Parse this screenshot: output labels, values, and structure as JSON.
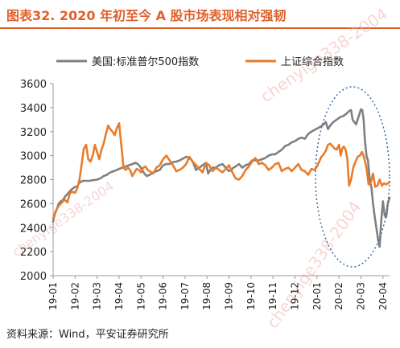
{
  "figure": {
    "title": "图表32.  2020 年初至今 A 股市场表现相对强韧",
    "source": "资料来源：Wind，平安证券研究所",
    "watermark": "chenyige338-2004"
  },
  "chart_data": {
    "type": "line",
    "ylim": [
      2000,
      3600
    ],
    "yticks": [
      2000,
      2200,
      2400,
      2600,
      2800,
      3000,
      3200,
      3400,
      3600
    ],
    "xticks": [
      "19-01",
      "19-02",
      "19-03",
      "19-04",
      "19-05",
      "19-06",
      "19-07",
      "19-08",
      "19-09",
      "19-10",
      "19-11",
      "19-12",
      "20-01",
      "20-02",
      "20-03",
      "20-04"
    ],
    "grid": false,
    "legend_position": "top",
    "annotation": "dotted-ellipse around 20-02 to 20-04",
    "series": [
      {
        "name": "美国:标准普尔500指数",
        "color": "#808080",
        "x": [
          0.0,
          0.05,
          0.1,
          0.18,
          0.25,
          0.35,
          0.45,
          0.55,
          0.65,
          0.75,
          0.85,
          1.0,
          1.1,
          1.2,
          1.35,
          1.5,
          1.65,
          1.8,
          2.0,
          2.15,
          2.3,
          2.45,
          2.6,
          2.75,
          2.9,
          3.0,
          3.15,
          3.3,
          3.45,
          3.6,
          3.75,
          3.85,
          3.95,
          4.05,
          4.15,
          4.25,
          4.4,
          4.55,
          4.7,
          4.85,
          5.0,
          5.15,
          5.3,
          5.45,
          5.6,
          5.75,
          5.85,
          5.95,
          6.05,
          6.2,
          6.35,
          6.5,
          6.65,
          6.8,
          6.95,
          7.05,
          7.15,
          7.25,
          7.4,
          7.55,
          7.7,
          7.85,
          8.0,
          8.1,
          8.2,
          8.3,
          8.45,
          8.6,
          8.75,
          8.9,
          9.05,
          9.2,
          9.35,
          9.5,
          9.65,
          9.8,
          9.95,
          10.1,
          10.25,
          10.4,
          10.55,
          10.7,
          10.85,
          11.0,
          11.15,
          11.3,
          11.45,
          11.6,
          11.75,
          11.9,
          12.05,
          12.2,
          12.3,
          12.4,
          12.5,
          12.6,
          12.75,
          12.9,
          13.05,
          13.2,
          13.35,
          13.45,
          13.55,
          13.62,
          13.7,
          13.78,
          13.85,
          13.92,
          14.0,
          14.06,
          14.12,
          14.18,
          14.25,
          14.32,
          14.4,
          14.48,
          14.55,
          14.62,
          14.7,
          14.78,
          14.85,
          14.92,
          15.0,
          15.08,
          15.15,
          15.22,
          15.3
        ],
        "values": [
          2450,
          2500,
          2530,
          2560,
          2600,
          2620,
          2630,
          2660,
          2680,
          2700,
          2720,
          2740,
          2745,
          2775,
          2790,
          2790,
          2790,
          2795,
          2800,
          2810,
          2830,
          2840,
          2860,
          2870,
          2880,
          2890,
          2900,
          2910,
          2920,
          2930,
          2940,
          2930,
          2910,
          2880,
          2850,
          2830,
          2840,
          2860,
          2870,
          2880,
          2920,
          2930,
          2930,
          2945,
          2950,
          2960,
          2970,
          2980,
          2990,
          2980,
          2950,
          2880,
          2900,
          2920,
          2940,
          2850,
          2880,
          2900,
          2900,
          2920,
          2930,
          2900,
          2870,
          2880,
          2900,
          2910,
          2930,
          2900,
          2920,
          2930,
          2960,
          2960,
          2960,
          2970,
          2980,
          3000,
          3010,
          3010,
          3030,
          3050,
          3080,
          3090,
          3110,
          3120,
          3140,
          3150,
          3140,
          3180,
          3200,
          3215,
          3230,
          3245,
          3260,
          3280,
          3220,
          3250,
          3280,
          3300,
          3320,
          3330,
          3350,
          3370,
          3380,
          3300,
          3280,
          3260,
          3300,
          3340,
          3386,
          3380,
          3300,
          3130,
          3000,
          2960,
          2800,
          2730,
          2600,
          2500,
          2400,
          2300,
          2240,
          2450,
          2620,
          2500,
          2490,
          2600,
          2650
        ]
      },
      {
        "name": "上证综合指数",
        "color": "#e87c2a",
        "x": [
          0.0,
          0.05,
          0.1,
          0.18,
          0.25,
          0.35,
          0.45,
          0.55,
          0.65,
          0.75,
          0.85,
          1.0,
          1.1,
          1.2,
          1.3,
          1.4,
          1.5,
          1.6,
          1.7,
          1.8,
          1.9,
          2.0,
          2.1,
          2.2,
          2.3,
          2.4,
          2.5,
          2.6,
          2.7,
          2.8,
          2.9,
          3.0,
          3.05,
          3.1,
          3.15,
          3.2,
          3.3,
          3.4,
          3.5,
          3.6,
          3.7,
          3.8,
          3.9,
          4.0,
          4.1,
          4.2,
          4.3,
          4.4,
          4.55,
          4.7,
          4.85,
          5.0,
          5.15,
          5.3,
          5.45,
          5.6,
          5.75,
          5.9,
          6.05,
          6.2,
          6.35,
          6.5,
          6.65,
          6.8,
          6.95,
          7.1,
          7.25,
          7.4,
          7.55,
          7.7,
          7.85,
          8.0,
          8.15,
          8.3,
          8.45,
          8.6,
          8.75,
          8.9,
          9.05,
          9.2,
          9.35,
          9.5,
          9.65,
          9.8,
          9.95,
          10.1,
          10.25,
          10.4,
          10.55,
          10.7,
          10.85,
          11.0,
          11.15,
          11.3,
          11.45,
          11.6,
          11.75,
          11.9,
          12.0,
          12.1,
          12.2,
          12.3,
          12.4,
          12.5,
          12.6,
          12.7,
          12.8,
          12.9,
          13.0,
          13.08,
          13.15,
          13.22,
          13.3,
          13.38,
          13.46,
          13.55,
          13.65,
          13.75,
          13.85,
          13.95,
          14.05,
          14.15,
          14.25,
          14.35,
          14.45,
          14.55,
          14.65,
          14.75,
          14.85,
          14.95,
          15.05,
          15.15,
          15.3
        ],
        "values": [
          2480,
          2490,
          2520,
          2560,
          2580,
          2600,
          2620,
          2630,
          2610,
          2680,
          2700,
          2690,
          2730,
          2800,
          2930,
          3060,
          3090,
          2970,
          2950,
          3000,
          3090,
          3030,
          2970,
          3050,
          3100,
          3180,
          3250,
          3220,
          3200,
          3170,
          3230,
          3270,
          3180,
          3090,
          3000,
          2900,
          2880,
          2900,
          2880,
          2830,
          2860,
          2890,
          2880,
          2860,
          2900,
          2910,
          2880,
          2870,
          2850,
          2900,
          2920,
          2970,
          3000,
          2960,
          2920,
          2870,
          2880,
          2900,
          2930,
          2990,
          2950,
          2920,
          2890,
          2860,
          2940,
          2920,
          2870,
          2900,
          2880,
          2860,
          2890,
          2920,
          2860,
          2810,
          2800,
          2830,
          2880,
          2910,
          2950,
          2980,
          2930,
          2940,
          2920,
          2880,
          2900,
          2930,
          2940,
          2870,
          2890,
          2900,
          2870,
          2900,
          2930,
          2880,
          2870,
          2840,
          2890,
          2880,
          2910,
          2950,
          2990,
          3010,
          3040,
          3090,
          3100,
          3080,
          3060,
          3050,
          3090,
          3000,
          3060,
          3075,
          3050,
          2980,
          2750,
          2800,
          2900,
          2950,
          2990,
          3000,
          3030,
          2980,
          2900,
          2760,
          2780,
          2850,
          2740,
          2750,
          2800,
          2750,
          2770,
          2760,
          2780
        ]
      }
    ]
  }
}
